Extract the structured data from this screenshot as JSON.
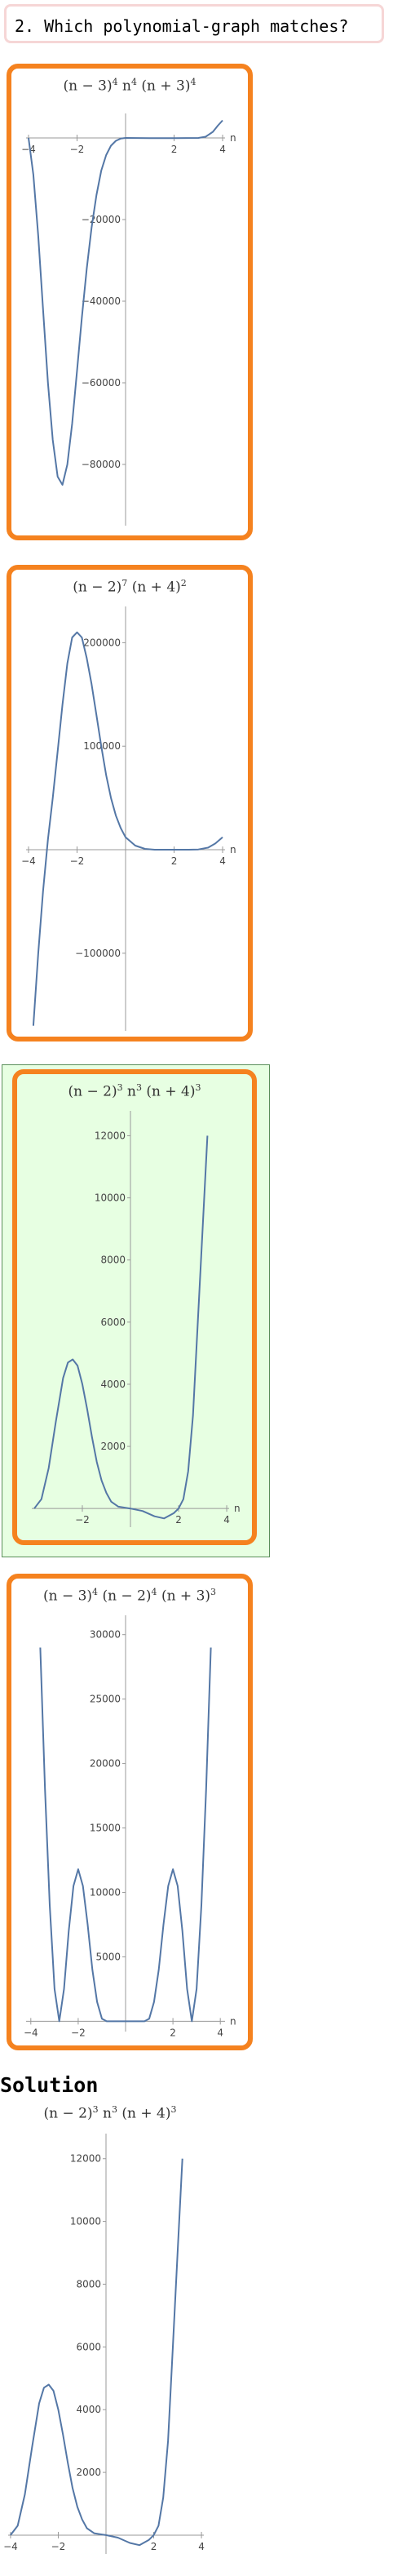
{
  "question": {
    "label": "2. Which polynomial-graph matches?"
  },
  "solution": {
    "heading": "Solution"
  },
  "choices": [
    {
      "id": "A",
      "equation_html": "(n − 3)<sup>4</sup> n<sup>4</sup> (n + 3)<sup>4</sup>",
      "selected": false,
      "chart_data": {
        "type": "line",
        "title": "(n − 3)^4 n^4 (n + 3)^4",
        "xlabel": "n",
        "ylabel": "",
        "xlim": [
          -4.1,
          4.1
        ],
        "ylim": [
          -95000,
          6000
        ],
        "xticks": [
          -4,
          -2,
          2,
          4
        ],
        "xticklabels": [
          "−4",
          "−2",
          "2",
          "4"
        ],
        "yticks": [
          -20000,
          -40000,
          -60000,
          -80000
        ],
        "yticklabels": [
          "−20000",
          "−40000",
          "−60000",
          "−80000"
        ],
        "series": [
          {
            "x": [
              -4.0,
              -3.8,
              -3.6,
              -3.4,
              -3.2,
              -3.0,
              -2.8,
              -2.6,
              -2.4,
              -2.2,
              -2.0,
              -1.8,
              -1.6,
              -1.4,
              -1.2,
              -1.0,
              -0.8,
              -0.6,
              -0.4,
              -0.2,
              0.0,
              0.5,
              1.0,
              1.5,
              2.0,
              2.5,
              3.0,
              3.3,
              3.6,
              3.8,
              4.0
            ],
            "y": [
              0,
              -9000,
              -24000,
              -42000,
              -60000,
              -74000,
              -83000,
              -85000,
              -80000,
              -70000,
              -57000,
              -44000,
              -32000,
              -22000,
              -14000,
              -8000,
              -4200,
              -1900,
              -700,
              -150,
              0,
              -10,
              -40,
              -60,
              -40,
              -10,
              0,
              300,
              1500,
              3000,
              4300
            ]
          }
        ]
      }
    },
    {
      "id": "B",
      "equation_html": "(n − 2)<sup>7</sup> (n + 4)<sup>2</sup>",
      "selected": false,
      "chart_data": {
        "type": "line",
        "title": "(n − 2)^7 (n + 4)^2",
        "xlabel": "n",
        "ylabel": "",
        "xlim": [
          -4.1,
          4.1
        ],
        "ylim": [
          -175000,
          235000
        ],
        "xticks": [
          -4,
          -2,
          2,
          4
        ],
        "xticklabels": [
          "−4",
          "−2",
          "2",
          "4"
        ],
        "yticks": [
          200000,
          100000,
          -100000
        ],
        "yticklabels": [
          "200000",
          "100000",
          "−100000"
        ],
        "series": [
          {
            "x": [
              -3.8,
              -3.6,
              -3.4,
              -3.2,
              -3.0,
              -2.8,
              -2.6,
              -2.4,
              -2.2,
              -2.0,
              -1.8,
              -1.6,
              -1.4,
              -1.2,
              -1.0,
              -0.8,
              -0.6,
              -0.4,
              -0.2,
              0.0,
              0.4,
              0.8,
              1.2,
              1.6,
              2.0,
              2.6,
              3.0,
              3.4,
              3.7,
              4.0
            ],
            "y": [
              -170000,
              -100000,
              -40000,
              10000,
              50000,
              95000,
              140000,
              180000,
              205000,
              210000,
              205000,
              185000,
              160000,
              130000,
              100000,
              72000,
              50000,
              33000,
              21000,
              12000,
              4000,
              800,
              0,
              0,
              0,
              0,
              300,
              2000,
              6000,
              12000
            ]
          }
        ]
      }
    },
    {
      "id": "C",
      "equation_html": "(n − 2)<sup>3</sup> n<sup>3</sup> (n + 4)<sup>3</sup>",
      "selected": true,
      "chart_data": {
        "type": "line",
        "title": "(n − 2)^3 n^3 (n + 4)^3",
        "xlabel": "n",
        "ylabel": "",
        "xlim": [
          -4.1,
          4.1
        ],
        "ylim": [
          -600,
          12800
        ],
        "xticks": [
          -2,
          2,
          4
        ],
        "xticklabels": [
          "−2",
          "2",
          "4"
        ],
        "yticks": [
          2000,
          4000,
          6000,
          8000,
          10000,
          12000
        ],
        "yticklabels": [
          "2000",
          "4000",
          "6000",
          "8000",
          "10000",
          "12000"
        ],
        "series": [
          {
            "x": [
              -4.0,
              -3.7,
              -3.4,
              -3.1,
              -2.8,
              -2.6,
              -2.4,
              -2.2,
              -2.0,
              -1.8,
              -1.6,
              -1.4,
              -1.2,
              -1.0,
              -0.8,
              -0.5,
              0.0,
              0.5,
              1.0,
              1.4,
              1.8,
              2.0,
              2.2,
              2.4,
              2.6,
              2.8,
              3.0,
              3.2
            ],
            "y": [
              0,
              300,
              1300,
              2800,
              4200,
              4700,
              4800,
              4600,
              4000,
              3200,
              2300,
              1500,
              900,
              500,
              220,
              60,
              0,
              -80,
              -250,
              -320,
              -150,
              0,
              300,
              1200,
              3000,
              6000,
              9000,
              12000
            ]
          }
        ]
      }
    },
    {
      "id": "D",
      "equation_html": "(n − 3)<sup>4</sup> (n − 2)<sup>4</sup> (n + 3)<sup>3</sup>",
      "selected": false,
      "chart_data": {
        "type": "line",
        "title": "(n − 3)^4 (n − 2)^4 (n + 3)^3",
        "xlabel": "n",
        "ylabel": "",
        "xlim": [
          -4.2,
          4.2
        ],
        "ylim": [
          -800,
          31500
        ],
        "xticks": [
          -4,
          -2,
          2,
          4
        ],
        "xticklabels": [
          "−4",
          "−2",
          "2",
          "4"
        ],
        "yticks": [
          5000,
          10000,
          15000,
          20000,
          25000,
          30000
        ],
        "yticklabels": [
          "5000",
          "10000",
          "15000",
          "20000",
          "25000",
          "30000"
        ],
        "series": [
          {
            "x": [
              -3.6,
              -3.4,
              -3.2,
              -3.0,
              -2.8,
              -2.6,
              -2.4,
              -2.2,
              -2.0,
              -1.8,
              -1.6,
              -1.4,
              -1.2,
              -1.0,
              -0.8,
              -0.5,
              -0.2,
              0.2,
              0.5,
              0.8,
              1.0,
              1.2,
              1.4,
              1.6,
              1.8,
              2.0,
              2.2,
              2.4,
              2.6,
              2.8,
              3.0,
              3.2,
              3.4,
              3.6
            ],
            "y": [
              29000,
              18000,
              9000,
              2500,
              0,
              2500,
              7000,
              10500,
              11800,
              10500,
              7500,
              4000,
              1500,
              200,
              0,
              0,
              0,
              0,
              0,
              0,
              200,
              1500,
              4000,
              7500,
              10500,
              11800,
              10500,
              7000,
              2500,
              0,
              2500,
              9000,
              18000,
              29000
            ]
          }
        ]
      }
    }
  ],
  "solution_chart": {
    "equation_html": "(n − 2)<sup>3</sup> n<sup>3</sup> (n + 4)<sup>3</sup>",
    "chart_data": {
      "type": "line",
      "title": "(n − 2)^3 n^3 (n + 4)^3",
      "xlabel": "",
      "ylabel": "",
      "xlim": [
        -4.1,
        4.1
      ],
      "ylim": [
        -600,
        12800
      ],
      "xticks": [
        -4,
        -2,
        2,
        4
      ],
      "xticklabels": [
        "−4",
        "−2",
        "2",
        "4"
      ],
      "yticks": [
        2000,
        4000,
        6000,
        8000,
        10000,
        12000
      ],
      "yticklabels": [
        "2000",
        "4000",
        "6000",
        "8000",
        "10000",
        "12000"
      ],
      "series": [
        {
          "x": [
            -4.0,
            -3.7,
            -3.4,
            -3.1,
            -2.8,
            -2.6,
            -2.4,
            -2.2,
            -2.0,
            -1.8,
            -1.6,
            -1.4,
            -1.2,
            -1.0,
            -0.8,
            -0.5,
            0.0,
            0.5,
            1.0,
            1.4,
            1.8,
            2.0,
            2.2,
            2.4,
            2.6,
            2.8,
            3.0,
            3.2
          ],
          "y": [
            0,
            300,
            1300,
            2800,
            4200,
            4700,
            4800,
            4600,
            4000,
            3200,
            2300,
            1500,
            900,
            500,
            220,
            60,
            0,
            -80,
            -250,
            -320,
            -150,
            0,
            300,
            1200,
            3000,
            6000,
            9000,
            12000
          ]
        }
      ]
    }
  },
  "colors": {
    "frame": "#f5821f",
    "selected_bg": "#e7ffe2",
    "curve": "#5477a6",
    "axis": "#999999",
    "question_border": "#f6d6d6"
  }
}
